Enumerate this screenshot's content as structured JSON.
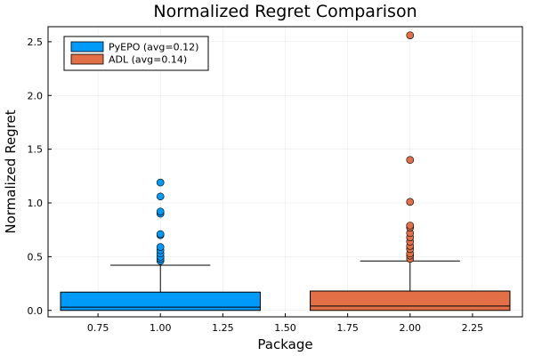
{
  "chart_data": {
    "type": "box",
    "title": "Normalized Regret Comparison",
    "xlabel": "Package",
    "ylabel": "Normalized Regret",
    "xlim": [
      0.55,
      2.45
    ],
    "ylim": [
      -0.06,
      2.64
    ],
    "xticks": [
      "0.75",
      "1.00",
      "1.25",
      "1.50",
      "1.75",
      "2.00",
      "2.25"
    ],
    "yticks": [
      "0.0",
      "0.5",
      "1.0",
      "1.5",
      "2.0",
      "2.5"
    ],
    "grid": true,
    "legend_position": "top-left",
    "series": [
      {
        "name": "PyEPO (avg=0.12)",
        "color": "#009af9",
        "x": 1.0,
        "box_width": 0.8,
        "whisker_width": 0.4,
        "min": 0.0,
        "q1": 0.0,
        "median": 0.03,
        "q3": 0.17,
        "whisker_high": 0.42,
        "outliers": [
          0.46,
          0.48,
          0.5,
          0.53,
          0.56,
          0.59,
          0.7,
          0.71,
          0.9,
          0.92,
          1.06,
          1.19
        ]
      },
      {
        "name": "ADL (avg=0.14)",
        "color": "#e26f46",
        "x": 2.0,
        "box_width": 0.8,
        "whisker_width": 0.4,
        "min": 0.0,
        "q1": 0.0,
        "median": 0.04,
        "q3": 0.18,
        "whisker_high": 0.46,
        "outliers": [
          0.48,
          0.51,
          0.53,
          0.57,
          0.6,
          0.64,
          0.68,
          0.72,
          0.77,
          0.79,
          1.01,
          1.4,
          2.56
        ]
      }
    ]
  }
}
